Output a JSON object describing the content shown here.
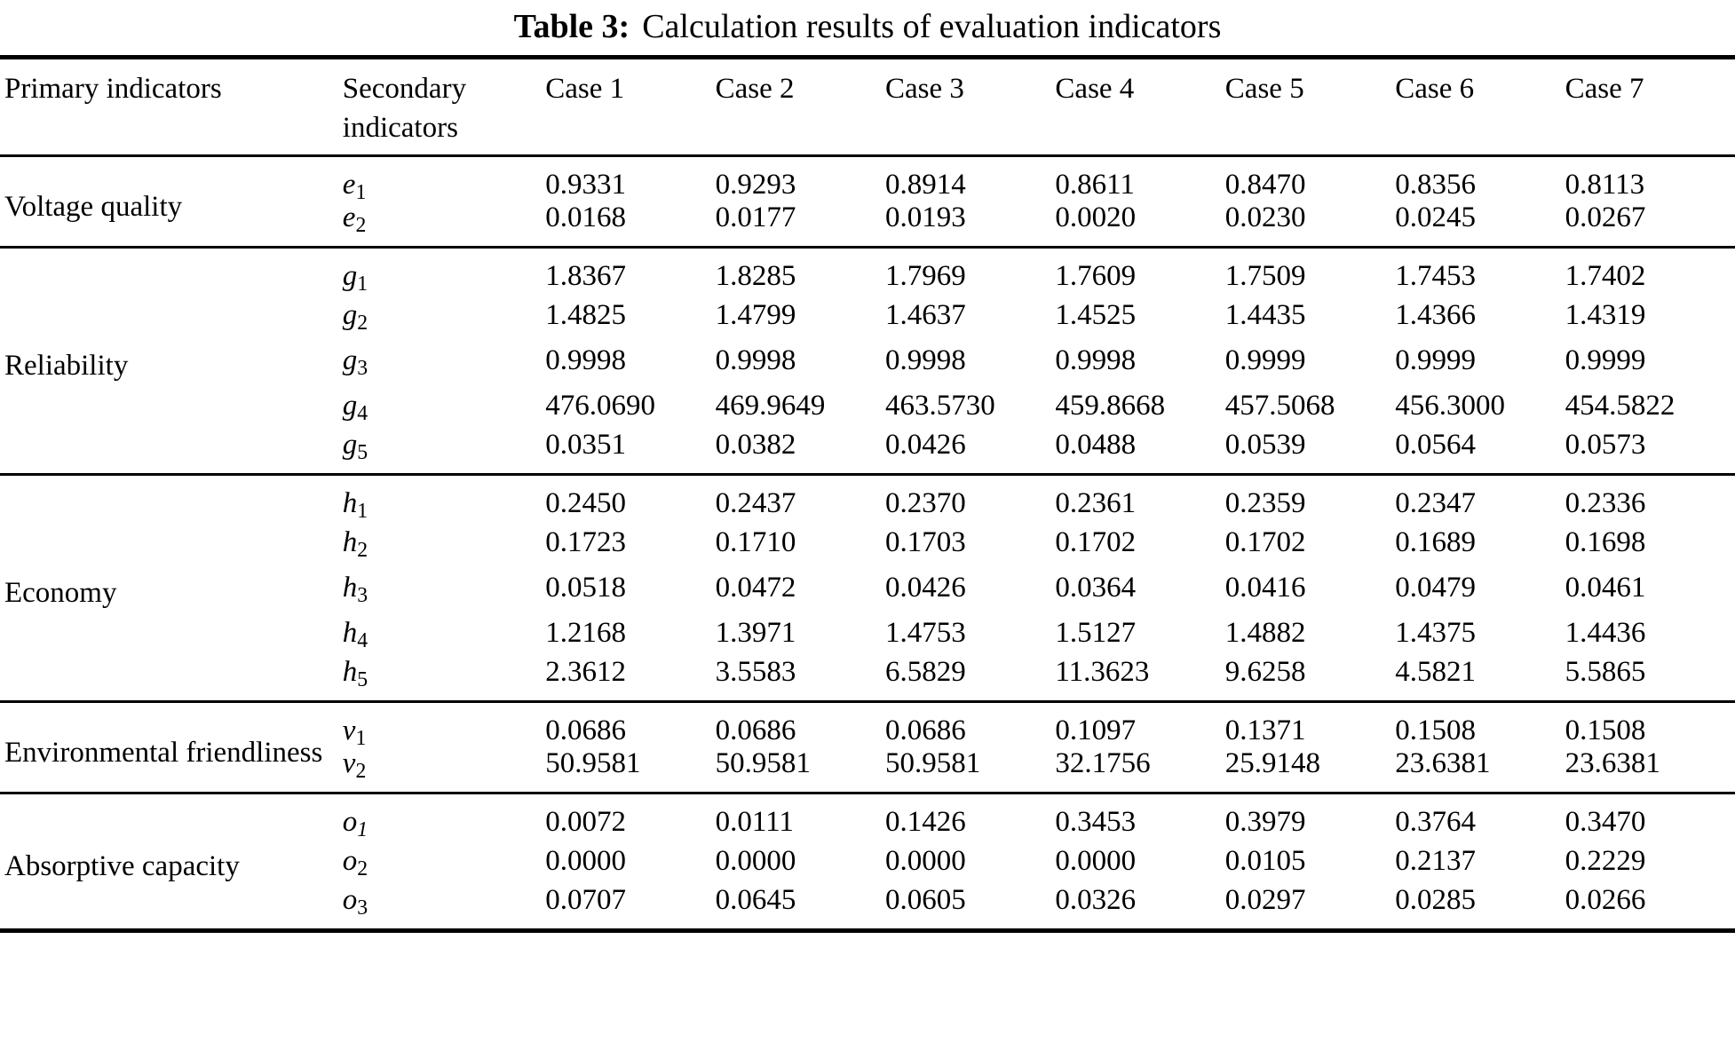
{
  "title": {
    "label": "Table 3:",
    "text": "Calculation results of evaluation indicators"
  },
  "header": {
    "primary": "Primary indicators",
    "secondary": "Secondary indicators",
    "cases": [
      "Case 1",
      "Case 2",
      "Case 3",
      "Case 4",
      "Case 5",
      "Case 6",
      "Case 7"
    ]
  },
  "sections": [
    {
      "primary": "Voltage quality",
      "slug": "voltage-quality",
      "rows": [
        {
          "letter": "e",
          "sub": "1",
          "italic_sub": false,
          "values": [
            "0.9331",
            "0.9293",
            "0.8914",
            "0.8611",
            "0.8470",
            "0.8356",
            "0.8113"
          ]
        },
        {
          "letter": "e",
          "sub": "2",
          "italic_sub": false,
          "values": [
            "0.0168",
            "0.0177",
            "0.0193",
            "0.0020",
            "0.0230",
            "0.0245",
            "0.0267"
          ]
        }
      ]
    },
    {
      "primary": "Reliability",
      "slug": "reliability",
      "rows": [
        {
          "letter": "g",
          "sub": "1",
          "italic_sub": false,
          "values": [
            "1.8367",
            "1.8285",
            "1.7969",
            "1.7609",
            "1.7509",
            "1.7453",
            "1.7402"
          ]
        },
        {
          "letter": "g",
          "sub": "2",
          "italic_sub": false,
          "values": [
            "1.4825",
            "1.4799",
            "1.4637",
            "1.4525",
            "1.4435",
            "1.4366",
            "1.4319"
          ]
        },
        {
          "letter": "g",
          "sub": "3",
          "italic_sub": false,
          "values": [
            "0.9998",
            "0.9998",
            "0.9998",
            "0.9998",
            "0.9999",
            "0.9999",
            "0.9999"
          ]
        },
        {
          "letter": "g",
          "sub": "4",
          "italic_sub": false,
          "values": [
            "476.0690",
            "469.9649",
            "463.5730",
            "459.8668",
            "457.5068",
            "456.3000",
            "454.5822"
          ]
        },
        {
          "letter": "g",
          "sub": "5",
          "italic_sub": false,
          "values": [
            "0.0351",
            "0.0382",
            "0.0426",
            "0.0488",
            "0.0539",
            "0.0564",
            "0.0573"
          ]
        }
      ]
    },
    {
      "primary": "Economy",
      "slug": "economy",
      "rows": [
        {
          "letter": "h",
          "sub": "1",
          "italic_sub": false,
          "values": [
            "0.2450",
            "0.2437",
            "0.2370",
            "0.2361",
            "0.2359",
            "0.2347",
            "0.2336"
          ]
        },
        {
          "letter": "h",
          "sub": "2",
          "italic_sub": false,
          "values": [
            "0.1723",
            "0.1710",
            "0.1703",
            "0.1702",
            "0.1702",
            "0.1689",
            "0.1698"
          ]
        },
        {
          "letter": "h",
          "sub": "3",
          "italic_sub": false,
          "values": [
            "0.0518",
            "0.0472",
            "0.0426",
            "0.0364",
            "0.0416",
            "0.0479",
            "0.0461"
          ]
        },
        {
          "letter": "h",
          "sub": "4",
          "italic_sub": false,
          "values": [
            "1.2168",
            "1.3971",
            "1.4753",
            "1.5127",
            "1.4882",
            "1.4375",
            "1.4436"
          ]
        },
        {
          "letter": "h",
          "sub": "5",
          "italic_sub": false,
          "values": [
            "2.3612",
            "3.5583",
            "6.5829",
            "11.3623",
            "9.6258",
            "4.5821",
            "5.5865"
          ]
        }
      ]
    },
    {
      "primary": "Environmental friendliness",
      "slug": "environmental-friendliness",
      "rows": [
        {
          "letter": "v",
          "sub": "1",
          "italic_sub": false,
          "values": [
            "0.0686",
            "0.0686",
            "0.0686",
            "0.1097",
            "0.1371",
            "0.1508",
            "0.1508"
          ]
        },
        {
          "letter": "v",
          "sub": "2",
          "italic_sub": false,
          "values": [
            "50.9581",
            "50.9581",
            "50.9581",
            "32.1756",
            "25.9148",
            "23.6381",
            "23.6381"
          ]
        }
      ]
    },
    {
      "primary": "Absorptive capacity",
      "slug": "absorptive-capacity",
      "rows": [
        {
          "letter": "o",
          "sub": "1",
          "italic_sub": true,
          "values": [
            "0.0072",
            "0.0111",
            "0.1426",
            "0.3453",
            "0.3979",
            "0.3764",
            "0.3470"
          ]
        },
        {
          "letter": "o",
          "sub": "2",
          "italic_sub": false,
          "values": [
            "0.0000",
            "0.0000",
            "0.0000",
            "0.0000",
            "0.0105",
            "0.2137",
            "0.2229"
          ]
        },
        {
          "letter": "o",
          "sub": "3",
          "italic_sub": false,
          "values": [
            "0.0707",
            "0.0645",
            "0.0605",
            "0.0326",
            "0.0297",
            "0.0285",
            "0.0266"
          ]
        }
      ]
    }
  ],
  "colors": {
    "text": "#000000",
    "background": "#ffffff",
    "rule": "#000000"
  }
}
